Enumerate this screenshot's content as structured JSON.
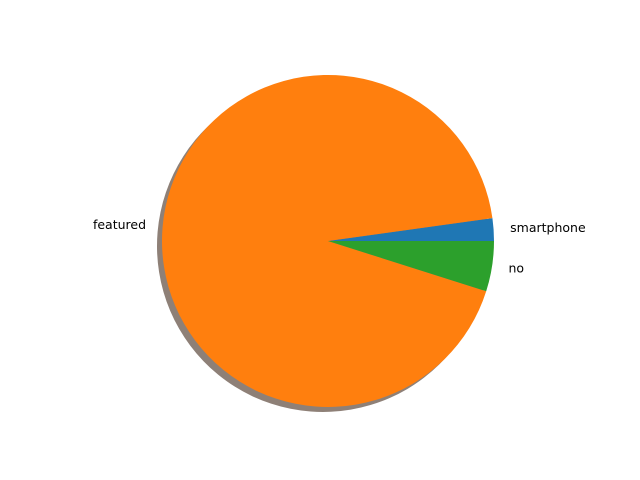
{
  "chart_data": {
    "type": "pie",
    "title": "",
    "categories": [
      "smartphone",
      "featured",
      "no"
    ],
    "values": [
      2.2,
      92.9,
      4.9
    ],
    "colors": [
      "#1f77b4",
      "#ff7f0e",
      "#2ca02c"
    ],
    "start_angle_degrees": 0,
    "direction": "counterclockwise",
    "shadow": true,
    "legend": "none"
  }
}
